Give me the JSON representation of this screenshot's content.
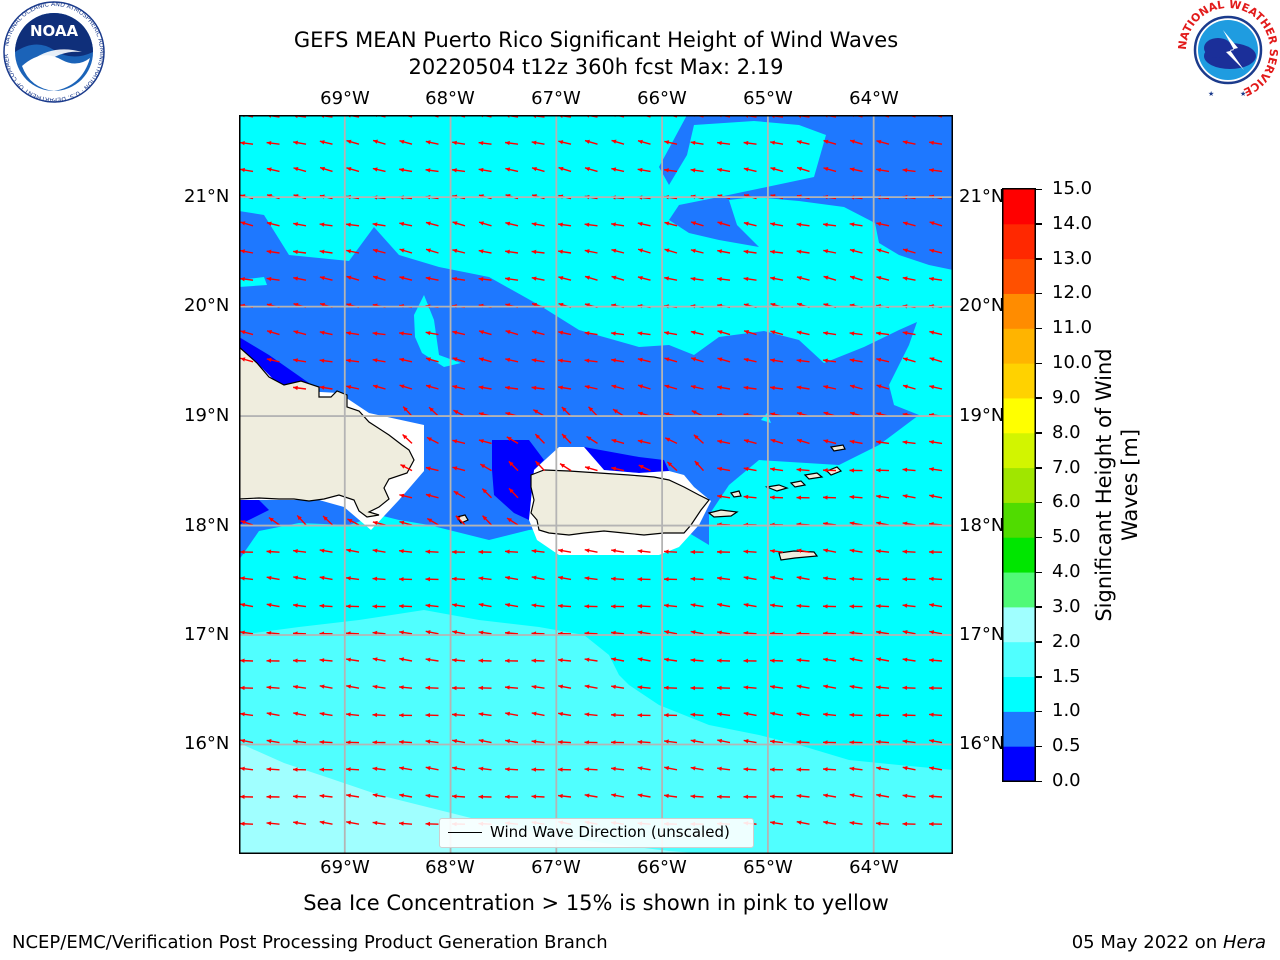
{
  "title": {
    "line1": "GEFS MEAN Puerto Rico Significant Height of Wind Waves",
    "line2": "20220504 t12z 360h fcst   Max: 2.19"
  },
  "map": {
    "lon_labels": [
      "69°W",
      "68°W",
      "67°W",
      "66°W",
      "65°W",
      "64°W"
    ],
    "lat_labels": [
      "21°N",
      "20°N",
      "19°N",
      "18°N",
      "17°N",
      "16°N"
    ],
    "lon_range": [
      -70.0,
      -63.25
    ],
    "lat_range": [
      15.0,
      21.75
    ],
    "grid": true,
    "legend_label": "Wind Wave Direction (unscaled)",
    "legend_position": "bottom-center",
    "arrow_color": "#ff0000",
    "land_color": "#efedde"
  },
  "colorbar": {
    "title_line1": "Significant Height of Wind",
    "title_line2": "Waves [m]",
    "tick_labels": [
      "0.0",
      "0.5",
      "1.0",
      "1.5",
      "2.0",
      "3.0",
      "4.0",
      "5.0",
      "6.0",
      "7.0",
      "8.0",
      "9.0",
      "10.0",
      "11.0",
      "12.0",
      "13.0",
      "14.0",
      "15.0"
    ],
    "colors": [
      "#0000ff",
      "#1e78ff",
      "#00ffff",
      "#50ffff",
      "#a0ffff",
      "#50fa78",
      "#00e600",
      "#50dc00",
      "#a0e600",
      "#d2f500",
      "#ffff00",
      "#ffd200",
      "#ffb400",
      "#ff8c00",
      "#ff5000",
      "#ff2800",
      "#ff0000"
    ]
  },
  "footer": {
    "note": "Sea Ice Concentration > 15% is shown in pink to yellow",
    "left": "NCEP/EMC/Verification Post Processing Product Generation Branch",
    "right_prefix": "05 May 2022 on ",
    "right_machine": "Hera"
  },
  "logos": {
    "noaa_text": "NOAA",
    "noaa_ring": "NATIONAL OCEANIC AND ATMOSPHERIC ADMINISTRATION · U.S. DEPARTMENT OF COMMERCE",
    "nws_ring": "NATIONAL WEATHER SERVICE"
  }
}
